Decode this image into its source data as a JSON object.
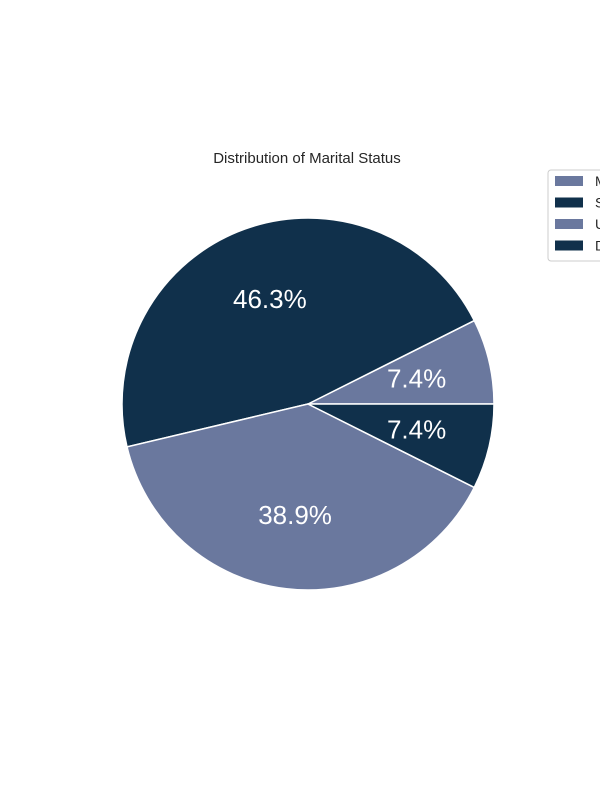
{
  "chart_data": {
    "type": "pie",
    "title": "Distribution of Marital Status",
    "labels": [
      "M",
      "S",
      "U",
      "D"
    ],
    "values": [
      7.4,
      46.3,
      38.9,
      7.4
    ],
    "value_labels": [
      "7.4%",
      "46.3%",
      "38.9%",
      "7.4%"
    ],
    "colors": [
      "#6a789e",
      "#10304b",
      "#6a789e",
      "#10304b"
    ],
    "start_angle_deg": 0,
    "direction": "counterclockwise",
    "legend_position": "top-right",
    "edge_color": "#ffffff"
  }
}
